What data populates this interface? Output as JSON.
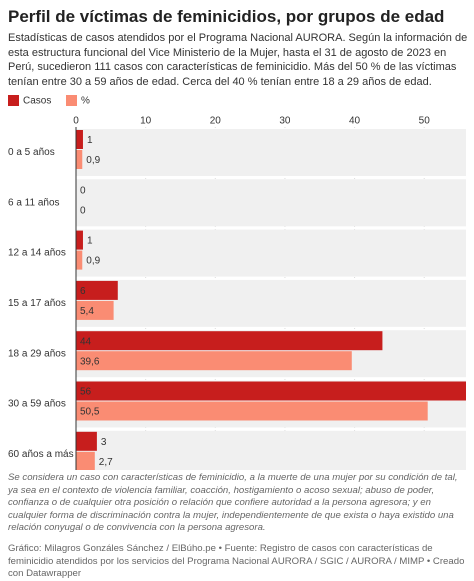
{
  "chart_data": {
    "type": "hbar",
    "title": "Perfil de víctimas de feminicidios, por grupos de edad",
    "subtitle": "Estadísticas de casos atendidos por el Programa Nacional AURORA. Según la información de esta estructura funcional del Vice Ministerio de la Mujer, hasta el 31 de agosto de 2023 en Perú, sucedieron 111 casos con características de feminicidio. Más del 50 % de las víctimas tenían entre 30 a 59 años de edad. Cerca del 40 % tenían entre 18 a 29 años de edad.",
    "categories": [
      "0 a 5 años",
      "6 a 11 años",
      "12 a 14 años",
      "15 a 17 años",
      "18 a 29 años",
      "30 a 59 años",
      "60 años a más"
    ],
    "series": [
      {
        "name": "Casos",
        "color": "#c71e1d",
        "values": [
          1,
          0,
          1,
          6,
          44,
          56,
          3
        ]
      },
      {
        "name": "%",
        "color": "#fa8c73",
        "values": [
          0.9,
          0,
          0.9,
          5.4,
          39.6,
          50.5,
          2.7
        ],
        "value_labels": [
          "0,9",
          "0",
          "0,9",
          "5,4",
          "39,6",
          "50,5",
          "2,7"
        ]
      }
    ],
    "xlim": [
      0,
      56
    ],
    "xticks": [
      0,
      10,
      20,
      30,
      40,
      50
    ],
    "notes": "Se considera un caso con características de feminicidio, a la muerte de una mujer por su condición de tal, ya sea en el contexto de violencia familiar, coacción, hostigamiento o acoso sexual; abuso de poder, confianza o de cualquier otra posición o relación que confiere autoridad a la persona agresora; y en cualquier forma de discriminación contra la mujer, independientemente de que exista o haya existido una relación conyugal o de convivencia con la persona agresora.",
    "source": "Gráfico: Milagros Gonzáles Sánchez / ElBúho.pe • Fuente: Registro de casos con características de feminicidio atendidos por los servicios del Programa Nacional AURORA / SGIC / AURORA / MIMP • Creado con Datawrapper"
  }
}
